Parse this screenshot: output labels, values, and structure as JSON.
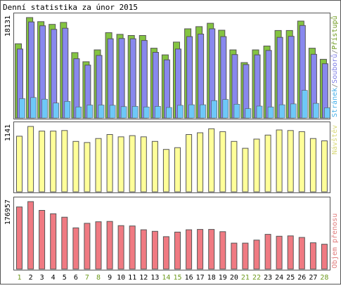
{
  "title": "Denní statistika za únor 2015",
  "days": [
    "1",
    "2",
    "3",
    "4",
    "5",
    "6",
    "7",
    "8",
    "9",
    "10",
    "11",
    "12",
    "13",
    "14",
    "15",
    "16",
    "17",
    "18",
    "19",
    "20",
    "21",
    "22",
    "23",
    "24",
    "25",
    "26",
    "27",
    "28"
  ],
  "weekend_days": [
    "1",
    "7",
    "8",
    "14",
    "15",
    "21",
    "22",
    "28"
  ],
  "colors": {
    "background": "#ffffff",
    "frame": "#555555",
    "text": "#000000",
    "weekday_label": "#000000",
    "weekend_label": "#6e9a1e",
    "access": "#84c441",
    "files": "#8888ee",
    "hits": "#6ec8f8",
    "visitors": "#ffff99",
    "traffic": "#f07a82",
    "bar_outline": "#555555",
    "label_access": "#6e9a1e",
    "label_files": "#8080e6",
    "label_hits": "#48b0e8",
    "label_visitors": "#d8d878",
    "label_traffic": "#e07c7c",
    "label_separator": "#808080"
  },
  "chart_data": [
    {
      "type": "bar",
      "name": "hits-files-access",
      "ymax_label": "18131",
      "ylim": [
        0,
        18131
      ],
      "legend": {
        "hits": "Stránek",
        "separator": "/",
        "files": "Souborů",
        "access": "Přístupů"
      },
      "categories": [
        "1",
        "2",
        "3",
        "4",
        "5",
        "6",
        "7",
        "8",
        "9",
        "10",
        "11",
        "12",
        "13",
        "14",
        "15",
        "16",
        "17",
        "18",
        "19",
        "20",
        "21",
        "22",
        "23",
        "24",
        "25",
        "26",
        "27",
        "28"
      ],
      "series": [
        {
          "name": "Přístupů",
          "values": [
            13400,
            18131,
            17400,
            16900,
            17250,
            11800,
            10150,
            12300,
            15400,
            15100,
            14900,
            14900,
            12600,
            11400,
            13700,
            16100,
            16500,
            17100,
            15850,
            12300,
            10000,
            12300,
            13000,
            15800,
            15800,
            17500,
            12600,
            10600
          ]
        },
        {
          "name": "Souborů",
          "values": [
            12450,
            17350,
            16650,
            16000,
            16200,
            10700,
            9550,
            11300,
            14300,
            14350,
            14300,
            14000,
            11850,
            10500,
            12450,
            14700,
            15150,
            16100,
            14700,
            11450,
            9650,
            11400,
            12200,
            14550,
            14750,
            16700,
            11500,
            9800
          ]
        },
        {
          "name": "Stránek",
          "values": [
            3500,
            3700,
            3400,
            2700,
            3000,
            2000,
            2350,
            2350,
            2300,
            2050,
            2100,
            2000,
            2100,
            1900,
            2300,
            2400,
            2400,
            3150,
            3350,
            2500,
            1700,
            2150,
            2000,
            2400,
            2550,
            5000,
            2650,
            1850
          ]
        }
      ]
    },
    {
      "type": "bar",
      "name": "visitors",
      "ymax_label": "1141",
      "ylim": [
        0,
        1141
      ],
      "legend": {
        "visitors": "Návštěv"
      },
      "categories": [
        "1",
        "2",
        "3",
        "4",
        "5",
        "6",
        "7",
        "8",
        "9",
        "10",
        "11",
        "12",
        "13",
        "14",
        "15",
        "16",
        "17",
        "18",
        "19",
        "20",
        "21",
        "22",
        "23",
        "24",
        "25",
        "26",
        "27",
        "28"
      ],
      "series": [
        {
          "name": "Návštěv",
          "values": [
            970,
            1141,
            1060,
            1060,
            1070,
            880,
            860,
            930,
            1000,
            960,
            980,
            960,
            880,
            740,
            770,
            1000,
            1030,
            1100,
            1050,
            880,
            760,
            920,
            990,
            1080,
            1070,
            1050,
            930,
            890
          ]
        }
      ]
    },
    {
      "type": "bar",
      "name": "traffic",
      "ymax_label": "176957",
      "ylim": [
        0,
        176957
      ],
      "legend": {
        "traffic": "Objem přenosu"
      },
      "categories": [
        "1",
        "2",
        "3",
        "4",
        "5",
        "6",
        "7",
        "8",
        "9",
        "10",
        "11",
        "12",
        "13",
        "14",
        "15",
        "16",
        "17",
        "18",
        "19",
        "20",
        "21",
        "22",
        "23",
        "24",
        "25",
        "26",
        "27",
        "28"
      ],
      "series": [
        {
          "name": "Objem přenosu",
          "values": [
            163000,
            176957,
            154000,
            145000,
            136000,
            108000,
            120000,
            124000,
            125000,
            114000,
            113000,
            103000,
            99000,
            85000,
            97000,
            103000,
            104000,
            104000,
            98000,
            68000,
            68000,
            76000,
            91000,
            86000,
            87000,
            83000,
            69000,
            65000
          ]
        }
      ]
    }
  ]
}
